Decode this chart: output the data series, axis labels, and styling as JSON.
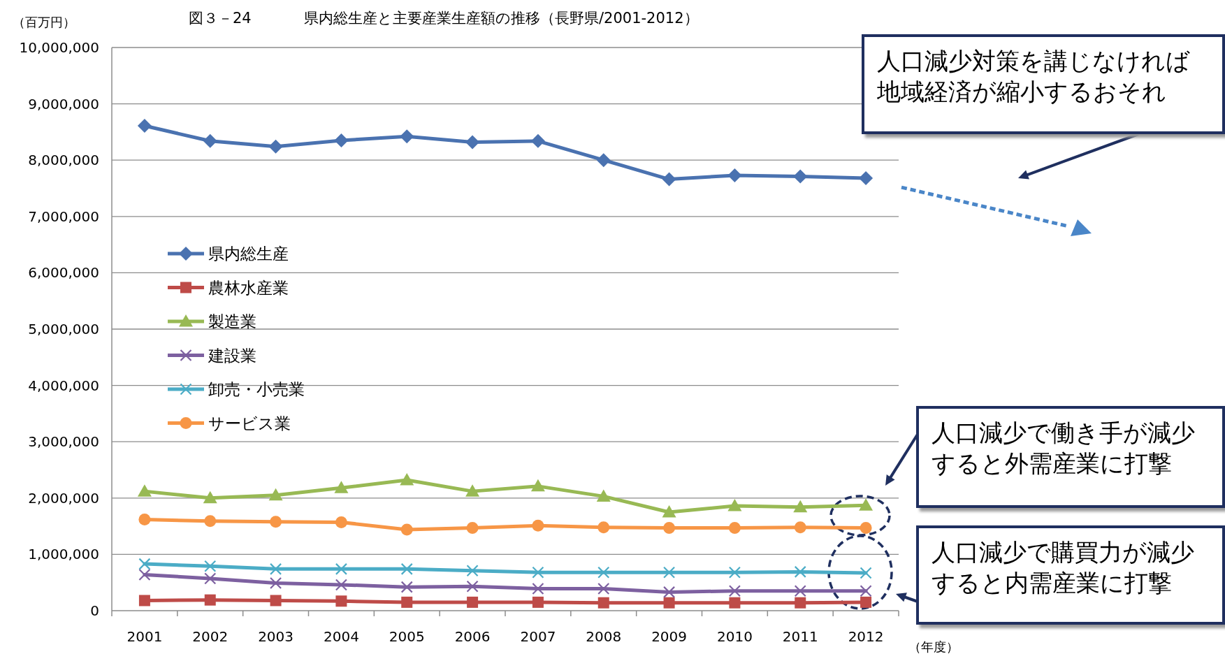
{
  "chart_data": {
    "type": "line",
    "title": "県内総生産と主要産業生産額の推移（長野県/2001-2012）",
    "ylabel": "（百万円）",
    "xlabel": "（年度）",
    "annotations": [
      "図３－24",
      "人口減少対策を講じなければ地域経済が縮小するおそれ",
      "人口減少で働き手が減少すると外需産業に打撃",
      "人口減少で購買力が減少すると内需産業に打撃"
    ],
    "categories": [
      "2001",
      "2002",
      "2003",
      "2004",
      "2005",
      "2006",
      "2007",
      "2008",
      "2009",
      "2010",
      "2011",
      "2012"
    ],
    "ylim": [
      0,
      10000000
    ],
    "yticks": [
      {
        "value": 0,
        "label": "0"
      },
      {
        "value": 1000000,
        "label": "1,000,000"
      },
      {
        "value": 2000000,
        "label": "2,000,000"
      },
      {
        "value": 3000000,
        "label": "3,000,000"
      },
      {
        "value": 4000000,
        "label": "4,000,000"
      },
      {
        "value": 5000000,
        "label": "5,000,000"
      },
      {
        "value": 6000000,
        "label": "6,000,000"
      },
      {
        "value": 7000000,
        "label": "7,000,000"
      },
      {
        "value": 8000000,
        "label": "8,000,000"
      },
      {
        "value": 9000000,
        "label": "9,000,000"
      },
      {
        "value": 10000000,
        "label": "10,000,000"
      }
    ],
    "grid": "y",
    "legend": "left",
    "series": [
      {
        "name": "県内総生産",
        "color": "#4a72b0",
        "marker": "diamond",
        "values": [
          8610000,
          8340000,
          8240000,
          8350000,
          8420000,
          8320000,
          8340000,
          8000000,
          7660000,
          7730000,
          7710000,
          7680000
        ]
      },
      {
        "name": "農林水産業",
        "color": "#be4b48",
        "marker": "square",
        "values": [
          180000,
          190000,
          180000,
          170000,
          150000,
          150000,
          150000,
          140000,
          140000,
          140000,
          140000,
          150000
        ]
      },
      {
        "name": "製造業",
        "color": "#98b954",
        "marker": "triangle",
        "values": [
          2120000,
          2000000,
          2050000,
          2180000,
          2320000,
          2120000,
          2210000,
          2030000,
          1750000,
          1860000,
          1840000,
          1870000
        ]
      },
      {
        "name": "建設業",
        "color": "#7d60a0",
        "marker": "cross",
        "values": [
          640000,
          570000,
          490000,
          460000,
          420000,
          430000,
          390000,
          390000,
          330000,
          350000,
          350000,
          350000
        ]
      },
      {
        "name": "卸売・小売業",
        "color": "#4bacc6",
        "marker": "cross",
        "values": [
          830000,
          790000,
          740000,
          740000,
          740000,
          710000,
          680000,
          680000,
          680000,
          680000,
          690000,
          670000
        ]
      },
      {
        "name": "サービス業",
        "color": "#f79646",
        "marker": "circle",
        "values": [
          1620000,
          1590000,
          1580000,
          1570000,
          1440000,
          1470000,
          1510000,
          1480000,
          1470000,
          1470000,
          1480000,
          1470000
        ]
      }
    ]
  }
}
